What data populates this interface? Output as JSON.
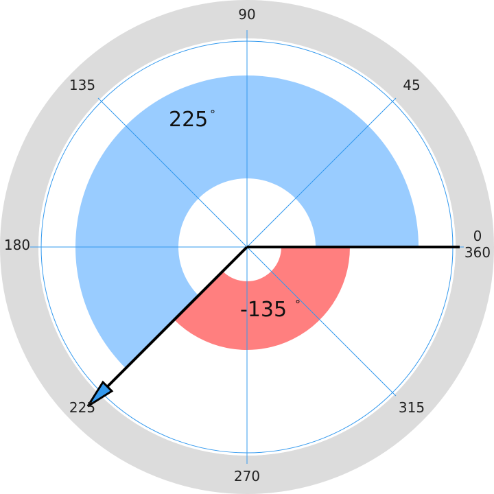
{
  "dial": {
    "tick_labels": [
      "90",
      "45",
      "135",
      "180",
      "0",
      "360",
      "225",
      "315",
      "270"
    ],
    "positive_angle": {
      "value": 225,
      "text": "225",
      "unit": "°",
      "color": "#99ccff"
    },
    "negative_angle": {
      "value": -135,
      "text": "-135",
      "unit": "°",
      "color": "#ff7f7f"
    },
    "pointer_color": "#3399ee",
    "bezel_color": "#dcdcdc",
    "grid_color": "#3399ee"
  }
}
